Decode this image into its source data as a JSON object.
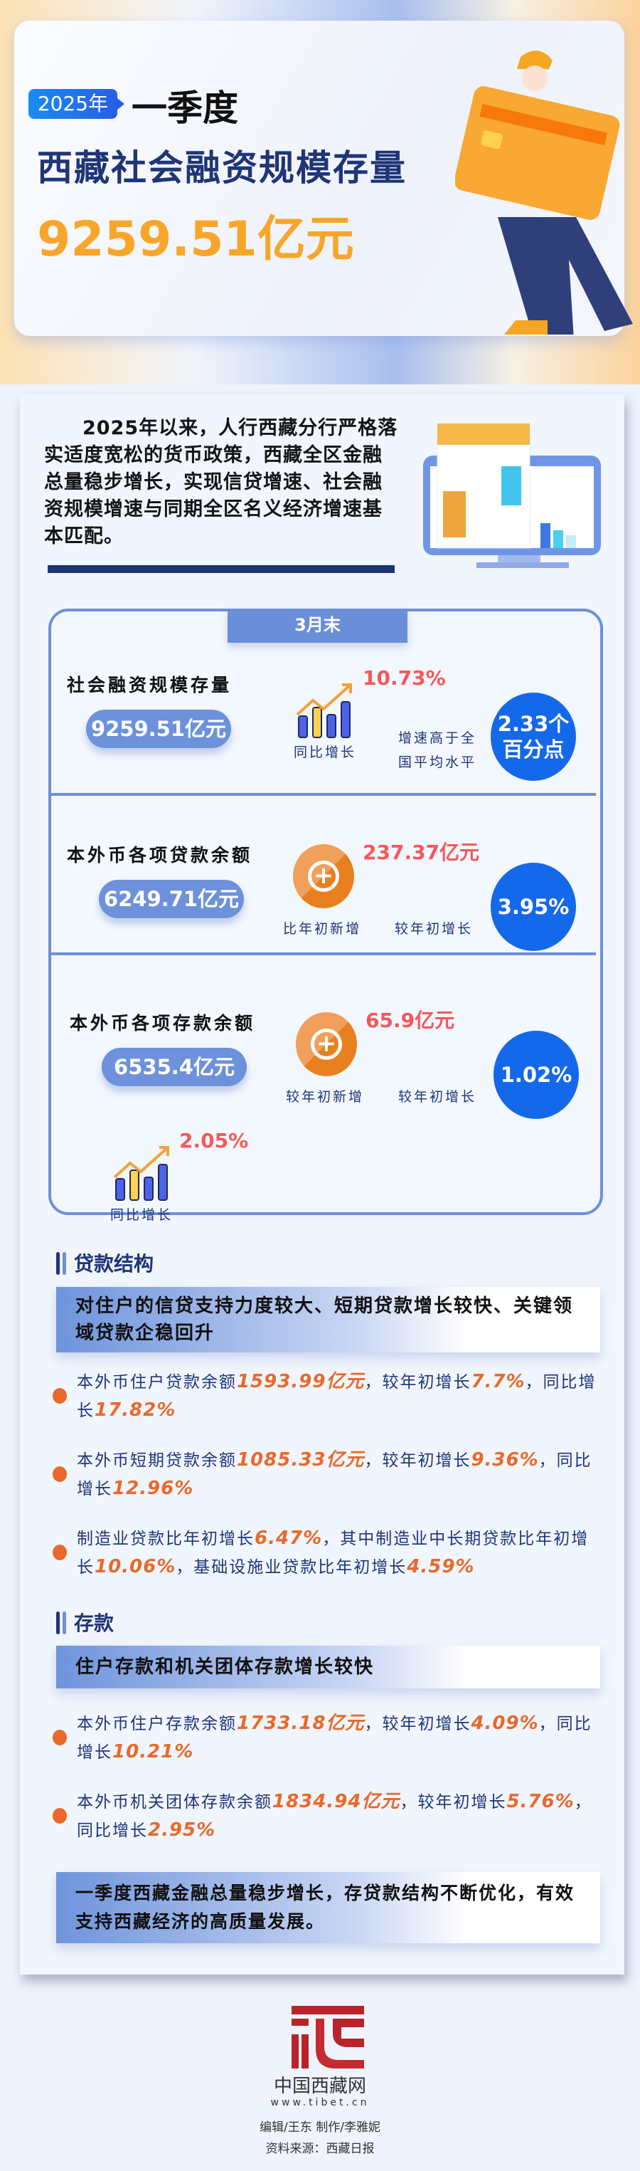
{
  "hero": {
    "badge": "2025年",
    "title_part": "一季度",
    "title": "西藏社会融资规模存量",
    "value": "9259.51亿元"
  },
  "intro": {
    "text": "2025年以来，人行西藏分行严格落实适度宽松的货币政策，西藏全区金融总量稳步增长，实现信贷增速、社会融资规模增速与同期全区名义经济增速基本匹配。"
  },
  "stats": {
    "tab": "3月末",
    "items": [
      {
        "label": "社会融资规模存量",
        "value": "9259.51亿元",
        "growth": "10.73%",
        "growth_label": "同比增长",
        "note": "增速高于全国平均水平",
        "circle": "2.33个百分点"
      },
      {
        "label": "本外币各项贷款余额",
        "value": "6249.71亿元",
        "added": "237.37亿元",
        "added_label": "比年初新增",
        "rate_label": "较年初增长",
        "circle": "3.95%"
      },
      {
        "label": "本外币各项存款余额",
        "value": "6535.4亿元",
        "added": "65.9亿元",
        "added_label": "较年初新增",
        "rate_label": "较年初增长",
        "circle": "1.02%",
        "growth": "2.05%",
        "growth_label": "同比增长"
      }
    ]
  },
  "loans": {
    "title": "贷款结构",
    "banner": "对住户的信贷支持力度较大、短期贷款增长较快、关键领域贷款企稳回升",
    "items": [
      {
        "parts": [
          "本外币住户贷款余额",
          "1593.99亿元",
          "，较年初增长",
          "7.7%",
          "，同比增长",
          "17.82%"
        ]
      },
      {
        "parts": [
          "本外币短期贷款余额",
          "1085.33亿元",
          "，较年初增长",
          "9.36%",
          "，同比增长",
          "12.96%"
        ]
      },
      {
        "parts": [
          "制造业贷款比年初增长",
          "6.47%",
          "，其中制造业中长期贷款比年初增长",
          "10.06%",
          "，基础设施业贷款比年初增长",
          "4.59%"
        ]
      }
    ]
  },
  "deposits": {
    "title": "存款",
    "banner": "住户存款和机关团体存款增长较快",
    "items": [
      {
        "parts": [
          "本外币住户存款余额",
          "1733.18亿元",
          "，较年初增长",
          "4.09%",
          "，同比增长",
          "10.21%"
        ]
      },
      {
        "parts": [
          "本外币机关团体存款余额",
          "1834.94亿元",
          "，较年初增长",
          "5.76%",
          "，同比增长",
          "2.95%"
        ]
      }
    ]
  },
  "summary": "一季度西藏金融总量稳步增长，存贷款结构不断优化，有效支持西藏经济的高质量发展。",
  "footer": {
    "logo_name": "中国西藏网",
    "logo_url": "www.tibet.cn",
    "credits": "编辑/王东 制作/李雅妮",
    "source": "资料来源：西藏日报"
  },
  "colors": {
    "accent_blue": "#1468ea",
    "navy": "#1f3577",
    "orange": "#e8692a",
    "red": "#f4585a",
    "gold": "#f8a62a"
  }
}
